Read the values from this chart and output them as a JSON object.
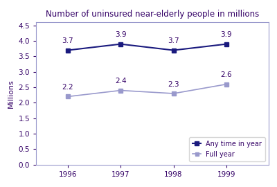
{
  "title": "Number of uninsured near-elderly people in millions",
  "years": [
    1996,
    1997,
    1998,
    1999
  ],
  "series": [
    {
      "label": "Any time in year",
      "values": [
        3.7,
        3.9,
        3.7,
        3.9
      ],
      "color": "#1a1a7e",
      "marker": "s",
      "markersize": 5,
      "linewidth": 1.5
    },
    {
      "label": "Full year",
      "values": [
        2.2,
        2.4,
        2.3,
        2.6
      ],
      "color": "#9999cc",
      "marker": "s",
      "markersize": 4,
      "linewidth": 1.2
    }
  ],
  "ylabel": "Millions",
  "ylim": [
    0.0,
    4.6
  ],
  "yticks": [
    0.0,
    0.5,
    1.0,
    1.5,
    2.0,
    2.5,
    3.0,
    3.5,
    4.0,
    4.5
  ],
  "background_color": "#ffffff",
  "title_color": "#330066",
  "label_color": "#330066",
  "tick_color": "#330066",
  "axis_color": "#9999cc",
  "legend_loc": "lower right",
  "figsize": [
    4.0,
    2.7
  ],
  "dpi": 100
}
